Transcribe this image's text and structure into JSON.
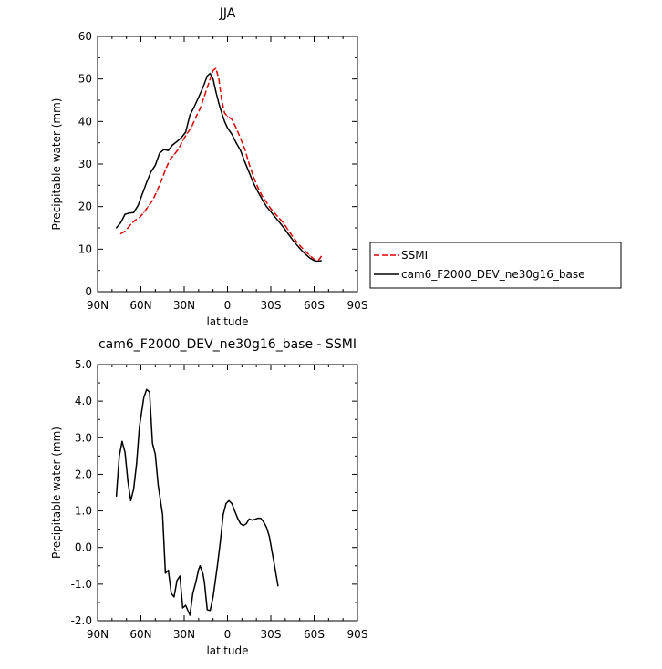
{
  "chart_data": [
    {
      "type": "line",
      "title": "JJA",
      "xlabel": "latitude",
      "ylabel": "Precipitable water (mm)",
      "xlim": [
        90,
        -90
      ],
      "ylim": [
        0,
        60
      ],
      "x_ticks": [
        90,
        60,
        30,
        0,
        -30,
        -60,
        -90
      ],
      "x_tick_labels": [
        "90N",
        "60N",
        "30N",
        "0",
        "30S",
        "60S",
        "90S"
      ],
      "y_ticks": [
        0,
        10,
        20,
        30,
        40,
        50,
        60
      ],
      "y_tick_labels": [
        "0",
        "10",
        "20",
        "30",
        "40",
        "50",
        "60"
      ],
      "legend_position": "right",
      "series": [
        {
          "name": "SSMI",
          "color": "#dd0000",
          "dash": "dashed",
          "points": [
            [
              74,
              13.6
            ],
            [
              71,
              14.2
            ],
            [
              67,
              15.8
            ],
            [
              64,
              16.8
            ],
            [
              61,
              17.4
            ],
            [
              58,
              18.6
            ],
            [
              55,
              20
            ],
            [
              52,
              21.4
            ],
            [
              49,
              23.5
            ],
            [
              46,
              26
            ],
            [
              43,
              28.6
            ],
            [
              40,
              31
            ],
            [
              37,
              32.2
            ],
            [
              34,
              33.5
            ],
            [
              31,
              35.5
            ],
            [
              28,
              37.2
            ],
            [
              25,
              38.6
            ],
            [
              22,
              41
            ],
            [
              19,
              43
            ],
            [
              16,
              46
            ],
            [
              13,
              49
            ],
            [
              10,
              52
            ],
            [
              8,
              52.5
            ],
            [
              6,
              50
            ],
            [
              4,
              45
            ],
            [
              2,
              42
            ],
            [
              0,
              41.2
            ],
            [
              -3,
              40.5
            ],
            [
              -6,
              38.5
            ],
            [
              -9,
              36
            ],
            [
              -12,
              33.5
            ],
            [
              -15,
              30
            ],
            [
              -18,
              27
            ],
            [
              -21,
              24.5
            ],
            [
              -24,
              22.5
            ],
            [
              -27,
              21
            ],
            [
              -30,
              19.5
            ],
            [
              -33,
              18.3
            ],
            [
              -36,
              17.2
            ],
            [
              -39,
              16
            ],
            [
              -42,
              14.5
            ],
            [
              -45,
              13
            ],
            [
              -48,
              11.7
            ],
            [
              -51,
              10.5
            ],
            [
              -54,
              9.5
            ],
            [
              -57,
              8.5
            ],
            [
              -60,
              7.6
            ],
            [
              -63,
              7.4
            ],
            [
              -65,
              8.3
            ]
          ]
        },
        {
          "name": "cam6_F2000_DEV_ne30g16_base",
          "color": "#000000",
          "dash": "solid",
          "points": [
            [
              77,
              15
            ],
            [
              74,
              16.2
            ],
            [
              71,
              18.2
            ],
            [
              68,
              18.5
            ],
            [
              65,
              18.6
            ],
            [
              62,
              20.2
            ],
            [
              59,
              23
            ],
            [
              56,
              25.7
            ],
            [
              53,
              28.2
            ],
            [
              50,
              29.7
            ],
            [
              47,
              32.6
            ],
            [
              44,
              33.4
            ],
            [
              41,
              33.2
            ],
            [
              38,
              34.5
            ],
            [
              35,
              35.3
            ],
            [
              32,
              36.2
            ],
            [
              29,
              37.5
            ],
            [
              26,
              41.5
            ],
            [
              23,
              43.5
            ],
            [
              20,
              45.7
            ],
            [
              17,
              48
            ],
            [
              14,
              50.7
            ],
            [
              12,
              51.3
            ],
            [
              10,
              50
            ],
            [
              8,
              47
            ],
            [
              6,
              44.3
            ],
            [
              4,
              42
            ],
            [
              2,
              40
            ],
            [
              0,
              38.5
            ],
            [
              -3,
              37
            ],
            [
              -6,
              35
            ],
            [
              -9,
              33.2
            ],
            [
              -12,
              30.5
            ],
            [
              -15,
              28
            ],
            [
              -18,
              25.5
            ],
            [
              -21,
              23.5
            ],
            [
              -24,
              21.7
            ],
            [
              -27,
              20
            ],
            [
              -30,
              18.8
            ],
            [
              -33,
              17.5
            ],
            [
              -36,
              16.3
            ],
            [
              -39,
              15
            ],
            [
              -42,
              13.6
            ],
            [
              -45,
              12.2
            ],
            [
              -48,
              11
            ],
            [
              -51,
              9.8
            ],
            [
              -54,
              8.8
            ],
            [
              -57,
              7.9
            ],
            [
              -60,
              7.3
            ],
            [
              -63,
              7.1
            ],
            [
              -65,
              7.3
            ]
          ]
        }
      ]
    },
    {
      "type": "line",
      "title": "cam6_F2000_DEV_ne30g16_base - SSMI",
      "xlabel": "latitude",
      "ylabel": "Precipitable water (mm)",
      "xlim": [
        90,
        -90
      ],
      "ylim": [
        -2,
        5
      ],
      "x_ticks": [
        90,
        60,
        30,
        0,
        -30,
        -60,
        -90
      ],
      "x_tick_labels": [
        "90N",
        "60N",
        "30N",
        "0",
        "30S",
        "60S",
        "90S"
      ],
      "y_ticks": [
        -2,
        -1,
        0,
        1,
        2,
        3,
        4,
        5
      ],
      "y_tick_labels": [
        "-2.0",
        "-1.0",
        "0.0",
        "1.0",
        "2.0",
        "3.0",
        "4.0",
        "5.0"
      ],
      "series": [
        {
          "color": "#000000",
          "dash": "solid",
          "points": [
            [
              77,
              1.4
            ],
            [
              75,
              2.5
            ],
            [
              73,
              2.9
            ],
            [
              71,
              2.6
            ],
            [
              69,
              1.8
            ],
            [
              67,
              1.28
            ],
            [
              65,
              1.6
            ],
            [
              63,
              2.3
            ],
            [
              61,
              3.3
            ],
            [
              58,
              4.1
            ],
            [
              56,
              4.32
            ],
            [
              54,
              4.25
            ],
            [
              52,
              2.85
            ],
            [
              50,
              2.55
            ],
            [
              48,
              1.7
            ],
            [
              45,
              0.9
            ],
            [
              43,
              -0.7
            ],
            [
              41,
              -0.62
            ],
            [
              39,
              -1.25
            ],
            [
              37,
              -1.35
            ],
            [
              35,
              -0.9
            ],
            [
              33,
              -0.78
            ],
            [
              31,
              -1.65
            ],
            [
              29,
              -1.58
            ],
            [
              26,
              -1.85
            ],
            [
              24,
              -1.25
            ],
            [
              22,
              -0.95
            ],
            [
              20,
              -0.6
            ],
            [
              19,
              -0.5
            ],
            [
              17,
              -0.72
            ],
            [
              16,
              -0.95
            ],
            [
              14,
              -1.7
            ],
            [
              12,
              -1.72
            ],
            [
              10,
              -1.35
            ],
            [
              7,
              -0.5
            ],
            [
              5,
              0.15
            ],
            [
              3,
              0.9
            ],
            [
              1,
              1.2
            ],
            [
              -1,
              1.28
            ],
            [
              -3,
              1.2
            ],
            [
              -5,
              1.0
            ],
            [
              -7,
              0.8
            ],
            [
              -9,
              0.65
            ],
            [
              -11,
              0.6
            ],
            [
              -13,
              0.65
            ],
            [
              -15,
              0.78
            ],
            [
              -17,
              0.75
            ],
            [
              -19,
              0.77
            ],
            [
              -21,
              0.8
            ],
            [
              -23,
              0.8
            ],
            [
              -25,
              0.7
            ],
            [
              -27,
              0.55
            ],
            [
              -29,
              0.3
            ],
            [
              -31,
              -0.15
            ],
            [
              -33,
              -0.6
            ],
            [
              -35,
              -1.05
            ]
          ]
        }
      ]
    }
  ]
}
